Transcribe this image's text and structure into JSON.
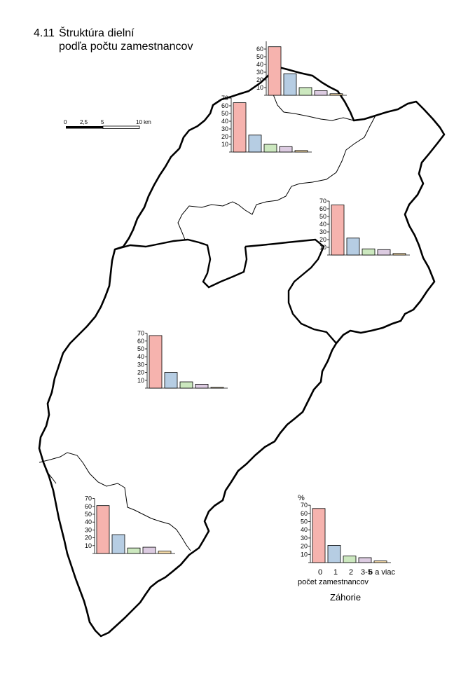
{
  "title": {
    "number": "4.11",
    "line1": "Štruktúra dielní",
    "line2": "podľa počtu zamestnancov"
  },
  "scale_bar": {
    "ticks": [
      "0",
      "2,5",
      "5",
      "10 km"
    ]
  },
  "legend": {
    "percent_sign": "%",
    "categories": [
      "0",
      "1",
      "2",
      "3-5",
      "6 a viac"
    ],
    "x_title": "počet zamestnancov",
    "region": "Záhorie"
  },
  "colors": [
    "#f6b3ae",
    "#b6cde3",
    "#cce8bf",
    "#dccbe1",
    "#fbe0ac"
  ],
  "chart_data": [
    {
      "type": "bar",
      "location": "north-top",
      "categories": [
        "0",
        "1",
        "2",
        "3-5",
        "6 a viac"
      ],
      "values": [
        63,
        28,
        10,
        6,
        2
      ],
      "ylim": [
        0,
        70
      ],
      "yticks": [
        "10",
        "20",
        "30",
        "40",
        "50",
        "60"
      ]
    },
    {
      "type": "bar",
      "location": "north",
      "categories": [
        "0",
        "1",
        "2",
        "3-5",
        "6 a viac"
      ],
      "values": [
        64,
        22,
        10,
        7,
        2
      ],
      "ylim": [
        0,
        70
      ],
      "yticks": [
        "10",
        "20",
        "30",
        "40",
        "50",
        "60",
        "70"
      ]
    },
    {
      "type": "bar",
      "location": "east",
      "categories": [
        "0",
        "1",
        "2",
        "3-5",
        "6 a viac"
      ],
      "values": [
        65,
        22,
        8,
        7,
        2
      ],
      "ylim": [
        0,
        70
      ],
      "yticks": [
        "10",
        "20",
        "30",
        "40",
        "50",
        "60",
        "70"
      ]
    },
    {
      "type": "bar",
      "location": "central",
      "categories": [
        "0",
        "1",
        "2",
        "3-5",
        "6 a viac"
      ],
      "values": [
        67,
        20,
        8,
        5,
        1
      ],
      "ylim": [
        0,
        70
      ],
      "yticks": [
        "10",
        "20",
        "30",
        "40",
        "50",
        "60",
        "70"
      ]
    },
    {
      "type": "bar",
      "location": "south",
      "categories": [
        "0",
        "1",
        "2",
        "3-5",
        "6 a viac"
      ],
      "values": [
        61,
        24,
        7,
        8,
        3
      ],
      "ylim": [
        0,
        70
      ],
      "yticks": [
        "10",
        "20",
        "30",
        "40",
        "50",
        "60",
        "70"
      ]
    },
    {
      "type": "bar",
      "location": "legend-zahorie",
      "categories": [
        "0",
        "1",
        "2",
        "3-5",
        "6 a viac"
      ],
      "values": [
        66,
        21,
        8,
        6,
        2
      ],
      "ylim": [
        0,
        70
      ],
      "yticks": [
        "10",
        "20",
        "30",
        "40",
        "50",
        "60",
        "70"
      ]
    }
  ]
}
